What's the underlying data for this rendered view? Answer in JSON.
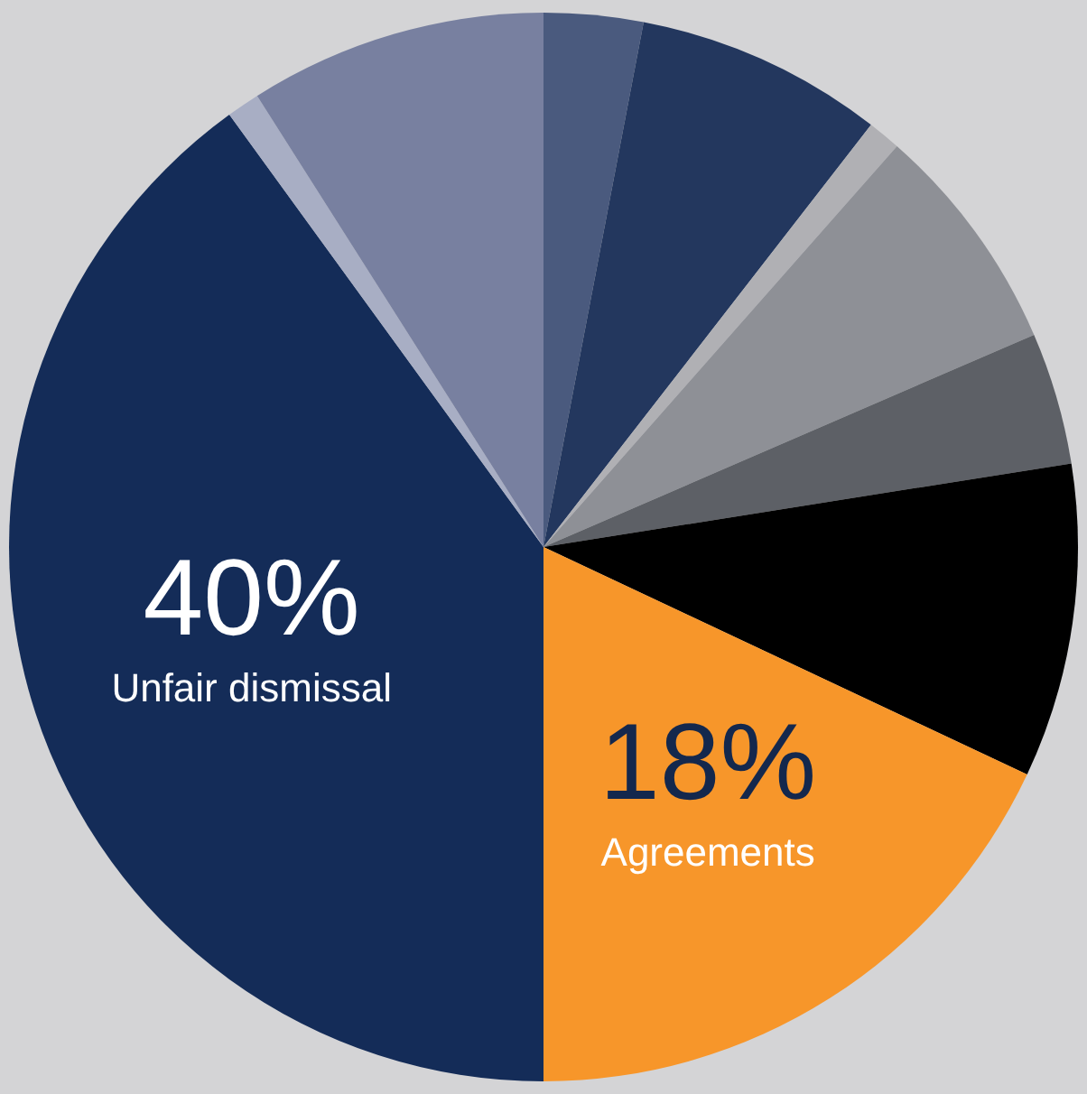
{
  "chart_data": {
    "type": "pie",
    "categories": [
      null,
      null,
      null,
      null,
      null,
      null,
      "Agreements",
      "Unfair dismissal",
      null,
      null
    ],
    "values": [
      3,
      7.5,
      1,
      7,
      4,
      9.5,
      18,
      40,
      1,
      9
    ],
    "value_labels": [
      null,
      null,
      null,
      null,
      null,
      null,
      "18%",
      "40%",
      null,
      null
    ],
    "colors": [
      "#4a5a7e",
      "#23375e",
      "#b0b0b4",
      "#8e9096",
      "#5d6066",
      "#000000",
      "#f7962a",
      "#142c58",
      "#a8aec4",
      "#7880a0"
    ]
  }
}
